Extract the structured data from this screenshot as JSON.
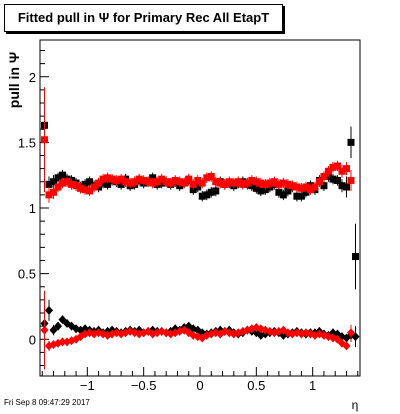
{
  "title": "Fitted pull in Ψ  for Primary Rec All EtapT",
  "footer": "Fri Sep  8 09:47:29 2017",
  "chart_data": {
    "type": "scatter",
    "title": "Fitted pull in Ψ  for Primary Rec All EtapT",
    "xlabel": "η",
    "ylabel": "pull in  Ψ",
    "xlim": [
      -1.42,
      1.42
    ],
    "ylim": [
      -0.28,
      2.28
    ],
    "xticks": [
      -1,
      -0.5,
      0,
      0.5,
      1
    ],
    "xtick_labels": [
      "−1",
      "−0.5",
      "0",
      "0.5",
      "1"
    ],
    "yticks": [
      0,
      0.5,
      1,
      1.5,
      2
    ],
    "ytick_labels": [
      "0",
      "0.5",
      "1",
      "1.5",
      "2"
    ],
    "grid": false,
    "colors": {
      "black_series": "#000000",
      "red_series": "#ff0000"
    },
    "series": [
      {
        "marker": "square",
        "color": "#000000",
        "x": [
          -1.38,
          -1.34,
          -1.3,
          -1.26,
          -1.22,
          -1.18,
          -1.14,
          -1.1,
          -1.06,
          -1.02,
          -0.98,
          -0.94,
          -0.9,
          -0.86,
          -0.82,
          -0.78,
          -0.74,
          -0.7,
          -0.66,
          -0.62,
          -0.58,
          -0.54,
          -0.5,
          -0.46,
          -0.42,
          -0.38,
          -0.34,
          -0.3,
          -0.26,
          -0.22,
          -0.18,
          -0.14,
          -0.1,
          -0.06,
          -0.02,
          0.02,
          0.06,
          0.1,
          0.14,
          0.18,
          0.22,
          0.26,
          0.3,
          0.34,
          0.38,
          0.42,
          0.46,
          0.5,
          0.54,
          0.58,
          0.62,
          0.66,
          0.7,
          0.74,
          0.78,
          0.82,
          0.86,
          0.9,
          0.94,
          0.98,
          1.02,
          1.06,
          1.1,
          1.14,
          1.18,
          1.22,
          1.26,
          1.3,
          1.34,
          1.38
        ],
        "y": [
          1.63,
          1.18,
          1.2,
          1.23,
          1.25,
          1.22,
          1.21,
          1.19,
          1.16,
          1.18,
          1.2,
          1.17,
          1.16,
          1.19,
          1.18,
          1.21,
          1.2,
          1.18,
          1.22,
          1.17,
          1.18,
          1.21,
          1.19,
          1.2,
          1.23,
          1.18,
          1.19,
          1.2,
          1.18,
          1.2,
          1.17,
          1.19,
          1.21,
          1.14,
          1.16,
          1.09,
          1.1,
          1.12,
          1.13,
          1.2,
          1.18,
          1.19,
          1.17,
          1.19,
          1.2,
          1.18,
          1.17,
          1.15,
          1.13,
          1.14,
          1.16,
          1.18,
          1.12,
          1.1,
          1.13,
          1.16,
          1.09,
          1.09,
          1.12,
          1.17,
          1.14,
          1.21,
          1.17,
          1.24,
          1.22,
          1.21,
          1.17,
          1.16,
          1.5,
          0.63
        ],
        "yerr": [
          0.1,
          0.06,
          0.05,
          0.04,
          0.04,
          0.04,
          0.04,
          0.04,
          0.04,
          0.04,
          0.04,
          0.04,
          0.04,
          0.04,
          0.04,
          0.04,
          0.04,
          0.04,
          0.04,
          0.04,
          0.04,
          0.04,
          0.04,
          0.04,
          0.04,
          0.04,
          0.04,
          0.04,
          0.04,
          0.04,
          0.04,
          0.04,
          0.04,
          0.04,
          0.04,
          0.04,
          0.04,
          0.04,
          0.04,
          0.04,
          0.04,
          0.04,
          0.04,
          0.04,
          0.04,
          0.04,
          0.04,
          0.04,
          0.04,
          0.04,
          0.04,
          0.04,
          0.04,
          0.04,
          0.04,
          0.04,
          0.04,
          0.04,
          0.04,
          0.04,
          0.04,
          0.04,
          0.04,
          0.04,
          0.04,
          0.04,
          0.05,
          0.08,
          0.12,
          0.25
        ]
      },
      {
        "marker": "square",
        "color": "#ff0000",
        "x": [
          -1.38,
          -1.34,
          -1.3,
          -1.26,
          -1.22,
          -1.18,
          -1.14,
          -1.1,
          -1.06,
          -1.02,
          -0.98,
          -0.94,
          -0.9,
          -0.86,
          -0.82,
          -0.78,
          -0.74,
          -0.7,
          -0.66,
          -0.62,
          -0.58,
          -0.54,
          -0.5,
          -0.46,
          -0.42,
          -0.38,
          -0.34,
          -0.3,
          -0.26,
          -0.22,
          -0.18,
          -0.14,
          -0.1,
          -0.06,
          -0.02,
          0.02,
          0.06,
          0.1,
          0.14,
          0.18,
          0.22,
          0.26,
          0.3,
          0.34,
          0.38,
          0.42,
          0.46,
          0.5,
          0.54,
          0.58,
          0.62,
          0.66,
          0.7,
          0.74,
          0.78,
          0.82,
          0.86,
          0.9,
          0.94,
          0.98,
          1.02,
          1.06,
          1.1,
          1.14,
          1.18,
          1.22,
          1.26,
          1.3,
          1.34,
          1.38
        ],
        "y": [
          1.52,
          1.1,
          1.12,
          1.16,
          1.19,
          1.2,
          1.18,
          1.17,
          1.15,
          1.14,
          1.13,
          1.16,
          1.19,
          1.22,
          1.23,
          1.22,
          1.21,
          1.22,
          1.2,
          1.19,
          1.2,
          1.22,
          1.21,
          1.2,
          1.19,
          1.2,
          1.22,
          1.2,
          1.19,
          1.21,
          1.2,
          1.19,
          1.22,
          1.18,
          1.21,
          1.19,
          1.23,
          1.24,
          1.2,
          1.19,
          1.18,
          1.2,
          1.19,
          1.2,
          1.18,
          1.19,
          1.21,
          1.2,
          1.19,
          1.18,
          1.19,
          1.2,
          1.18,
          1.19,
          1.18,
          1.17,
          1.16,
          1.15,
          1.16,
          1.14,
          1.16,
          1.2,
          1.24,
          1.28,
          1.31,
          1.32,
          1.28,
          1.3,
          1.21,
          null
        ],
        "yerr": [
          0.4,
          0.06,
          0.05,
          0.04,
          0.04,
          0.04,
          0.04,
          0.04,
          0.04,
          0.04,
          0.04,
          0.04,
          0.04,
          0.04,
          0.04,
          0.04,
          0.04,
          0.04,
          0.04,
          0.04,
          0.04,
          0.04,
          0.04,
          0.04,
          0.04,
          0.04,
          0.04,
          0.04,
          0.04,
          0.04,
          0.04,
          0.04,
          0.04,
          0.04,
          0.04,
          0.04,
          0.04,
          0.04,
          0.04,
          0.04,
          0.04,
          0.04,
          0.04,
          0.04,
          0.04,
          0.04,
          0.04,
          0.04,
          0.04,
          0.04,
          0.04,
          0.04,
          0.04,
          0.04,
          0.04,
          0.04,
          0.04,
          0.04,
          0.04,
          0.04,
          0.04,
          0.04,
          0.04,
          0.04,
          0.04,
          0.04,
          0.05,
          0.05,
          0.08,
          0
        ]
      },
      {
        "marker": "diamond",
        "color": "#000000",
        "x": [
          -1.38,
          -1.34,
          -1.3,
          -1.26,
          -1.22,
          -1.18,
          -1.14,
          -1.1,
          -1.06,
          -1.02,
          -0.98,
          -0.94,
          -0.9,
          -0.86,
          -0.82,
          -0.78,
          -0.74,
          -0.7,
          -0.66,
          -0.62,
          -0.58,
          -0.54,
          -0.5,
          -0.46,
          -0.42,
          -0.38,
          -0.34,
          -0.3,
          -0.26,
          -0.22,
          -0.18,
          -0.14,
          -0.1,
          -0.06,
          -0.02,
          0.02,
          0.06,
          0.1,
          0.14,
          0.18,
          0.22,
          0.26,
          0.3,
          0.34,
          0.38,
          0.42,
          0.46,
          0.5,
          0.54,
          0.58,
          0.62,
          0.66,
          0.7,
          0.74,
          0.78,
          0.82,
          0.86,
          0.9,
          0.94,
          0.98,
          1.02,
          1.06,
          1.1,
          1.14,
          1.18,
          1.22,
          1.26,
          1.3,
          1.34,
          1.38
        ],
        "y": [
          0.12,
          0.22,
          0.07,
          0.1,
          0.15,
          0.12,
          0.1,
          0.08,
          0.07,
          0.08,
          0.07,
          0.06,
          0.07,
          0.05,
          0.06,
          0.07,
          0.06,
          0.05,
          0.06,
          0.07,
          0.06,
          0.07,
          0.05,
          0.06,
          0.07,
          0.06,
          0.06,
          0.05,
          0.06,
          0.08,
          0.07,
          0.09,
          0.1,
          0.08,
          0.07,
          0.05,
          0.04,
          0.05,
          0.06,
          0.07,
          0.06,
          0.07,
          0.05,
          0.04,
          0.05,
          0.07,
          0.06,
          0.05,
          0.03,
          0.04,
          0.05,
          0.06,
          0.05,
          0.03,
          0.04,
          0.05,
          0.06,
          0.05,
          0.04,
          0.05,
          0.05,
          0.06,
          0.04,
          0.03,
          0.05,
          0.04,
          0.02,
          0.01,
          0.03,
          0.02
        ],
        "yerr": [
          0.1,
          0.08,
          0.04,
          0.03,
          0.03,
          0.02,
          0.02,
          0.02,
          0.02,
          0.02,
          0.02,
          0.02,
          0.02,
          0.02,
          0.02,
          0.02,
          0.02,
          0.02,
          0.02,
          0.02,
          0.02,
          0.02,
          0.02,
          0.02,
          0.02,
          0.02,
          0.02,
          0.02,
          0.02,
          0.02,
          0.02,
          0.02,
          0.02,
          0.02,
          0.02,
          0.02,
          0.02,
          0.02,
          0.02,
          0.02,
          0.02,
          0.02,
          0.02,
          0.02,
          0.02,
          0.02,
          0.02,
          0.02,
          0.02,
          0.02,
          0.02,
          0.02,
          0.02,
          0.02,
          0.02,
          0.02,
          0.02,
          0.02,
          0.02,
          0.02,
          0.02,
          0.02,
          0.02,
          0.02,
          0.02,
          0.02,
          0.03,
          0.03,
          0.05,
          0.08
        ]
      },
      {
        "marker": "diamond",
        "color": "#ff0000",
        "x": [
          -1.38,
          -1.34,
          -1.3,
          -1.26,
          -1.22,
          -1.18,
          -1.14,
          -1.1,
          -1.06,
          -1.02,
          -0.98,
          -0.94,
          -0.9,
          -0.86,
          -0.82,
          -0.78,
          -0.74,
          -0.7,
          -0.66,
          -0.62,
          -0.58,
          -0.54,
          -0.5,
          -0.46,
          -0.42,
          -0.38,
          -0.34,
          -0.3,
          -0.26,
          -0.22,
          -0.18,
          -0.14,
          -0.1,
          -0.06,
          -0.02,
          0.02,
          0.06,
          0.1,
          0.14,
          0.18,
          0.22,
          0.26,
          0.3,
          0.34,
          0.38,
          0.42,
          0.46,
          0.5,
          0.54,
          0.58,
          0.62,
          0.66,
          0.7,
          0.74,
          0.78,
          0.82,
          0.86,
          0.9,
          0.94,
          0.98,
          1.02,
          1.06,
          1.1,
          1.14,
          1.18,
          1.22,
          1.26,
          1.3,
          1.34,
          1.38
        ],
        "y": [
          0.07,
          -0.05,
          -0.04,
          -0.03,
          -0.02,
          -0.02,
          -0.01,
          0.0,
          0.02,
          0.04,
          0.05,
          0.04,
          0.05,
          0.04,
          0.03,
          0.04,
          0.05,
          0.04,
          0.05,
          0.06,
          0.05,
          0.04,
          0.05,
          0.06,
          0.04,
          0.05,
          0.06,
          0.05,
          0.04,
          0.05,
          0.06,
          0.07,
          0.05,
          0.03,
          0.02,
          0.01,
          0.03,
          0.04,
          0.05,
          0.04,
          0.06,
          0.05,
          0.04,
          0.05,
          0.06,
          0.07,
          0.08,
          0.09,
          0.08,
          0.07,
          0.06,
          0.05,
          0.06,
          0.07,
          0.05,
          0.04,
          0.05,
          0.04,
          0.05,
          0.04,
          0.03,
          0.04,
          0.03,
          0.02,
          0.01,
          0.0,
          -0.03,
          -0.05,
          0.05,
          null
        ],
        "yerr": [
          0.3,
          0.04,
          0.03,
          0.03,
          0.02,
          0.02,
          0.02,
          0.02,
          0.02,
          0.02,
          0.02,
          0.02,
          0.02,
          0.02,
          0.02,
          0.02,
          0.02,
          0.02,
          0.02,
          0.02,
          0.02,
          0.02,
          0.02,
          0.02,
          0.02,
          0.02,
          0.02,
          0.02,
          0.02,
          0.02,
          0.02,
          0.02,
          0.02,
          0.02,
          0.02,
          0.02,
          0.02,
          0.02,
          0.02,
          0.02,
          0.02,
          0.02,
          0.02,
          0.02,
          0.02,
          0.02,
          0.02,
          0.02,
          0.02,
          0.02,
          0.02,
          0.02,
          0.02,
          0.02,
          0.02,
          0.02,
          0.02,
          0.02,
          0.02,
          0.02,
          0.02,
          0.02,
          0.02,
          0.02,
          0.02,
          0.02,
          0.03,
          0.03,
          0.06,
          0
        ]
      }
    ]
  }
}
